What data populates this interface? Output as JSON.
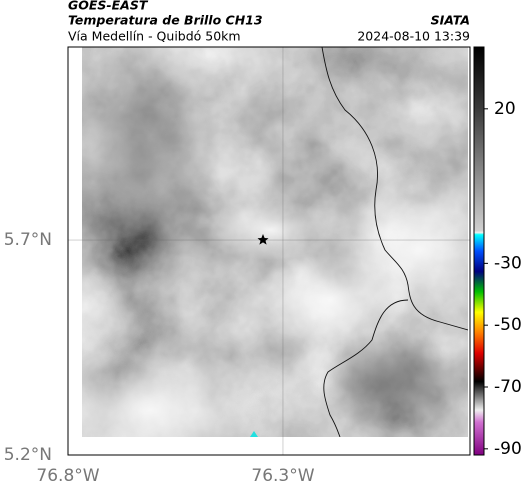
{
  "header": {
    "satellite": "GOES-EAST",
    "title": "Temperatura de Brillo CH13",
    "source": "SIATA",
    "region": "Vía Medellín - Quibdó 50km",
    "datetime": "2024-08-10 13:39"
  },
  "map": {
    "xlim": [
      -76.8,
      -75.865
    ],
    "ylim": [
      5.2,
      6.149
    ],
    "xticks": [
      {
        "value": -76.8,
        "label": "76.8°W"
      },
      {
        "value": -76.3,
        "label": "76.3°W"
      }
    ],
    "yticks": [
      {
        "value": 5.7,
        "label": "5.7°N"
      },
      {
        "value": 5.2,
        "label": "5.2°N"
      }
    ]
  },
  "colorbar": {
    "clim": [
      -92,
      40
    ],
    "ticks": [
      20,
      -30,
      -50,
      -70,
      -90
    ]
  }
}
